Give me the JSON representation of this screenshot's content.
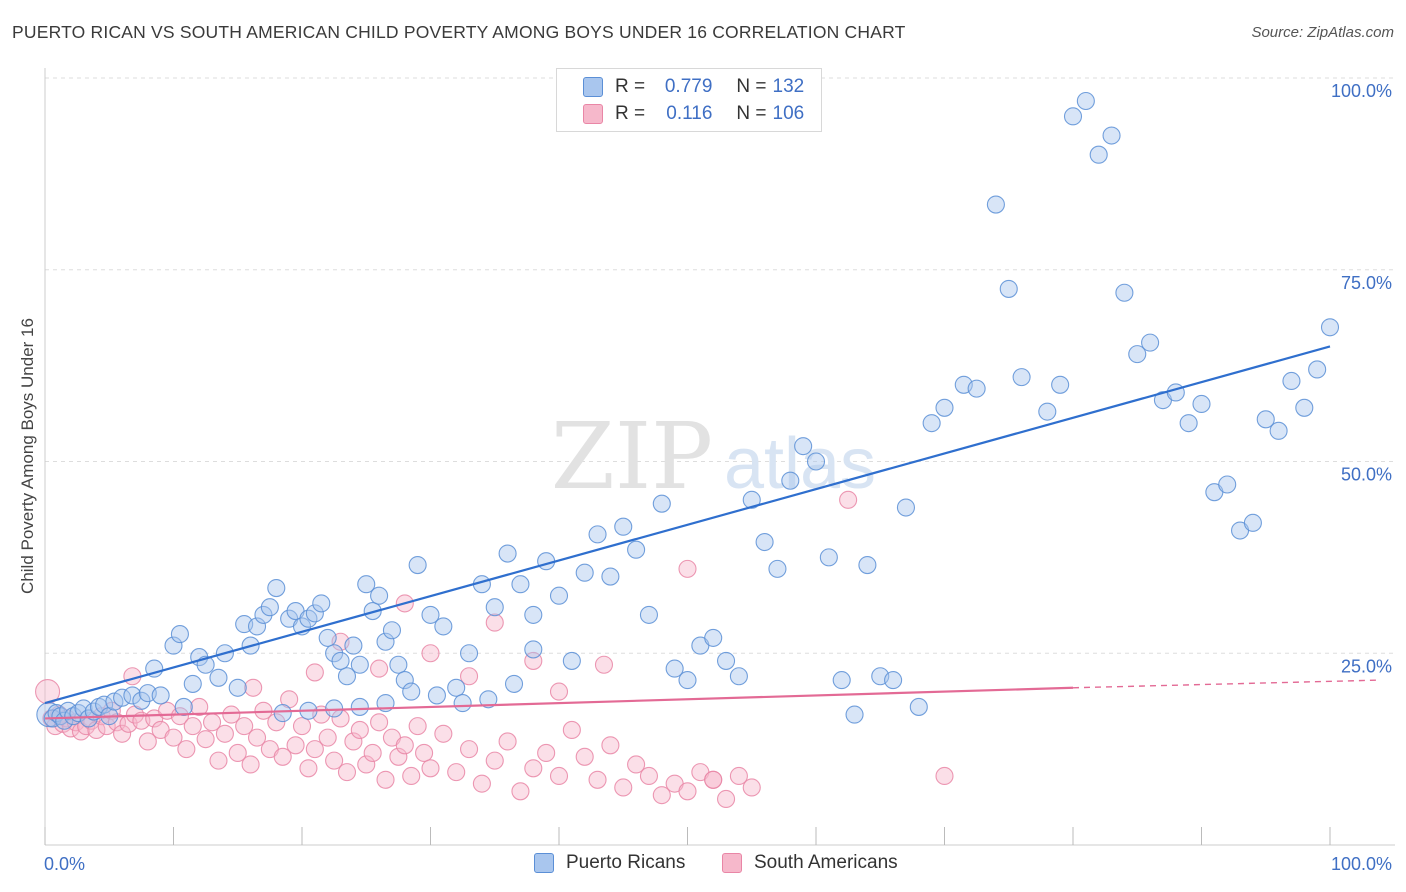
{
  "title": "PUERTO RICAN VS SOUTH AMERICAN CHILD POVERTY AMONG BOYS UNDER 16 CORRELATION CHART",
  "source": "Source: ZipAtlas.com",
  "watermark": {
    "zip": "ZIP",
    "atlas": "atlas"
  },
  "legend": {
    "r_label": "R =",
    "n_label": "N =",
    "rows": [
      {
        "series": "Puerto Ricans",
        "r": "0.779",
        "n": "132"
      },
      {
        "series": "South Americans",
        "r": "0.116",
        "n": "106"
      }
    ]
  },
  "colors": {
    "blue_fill": "#a9c6ee",
    "blue_stroke": "#5b8fd6",
    "blue_line": "#2f6fce",
    "pink_fill": "#f6b8cb",
    "pink_stroke": "#e986a6",
    "pink_line": "#e36a95",
    "axis_text": "#3f6fc4",
    "grid": "#dddddd"
  },
  "chart_data": {
    "type": "scatter",
    "title": "PUERTO RICAN VS SOUTH AMERICAN CHILD POVERTY AMONG BOYS UNDER 16 CORRELATION CHART",
    "xlabel": "",
    "ylabel": "Child Poverty Among Boys Under 16",
    "xlim": [
      0,
      100
    ],
    "ylim": [
      0,
      100
    ],
    "x_tick_labels": [
      "0.0%",
      "100.0%"
    ],
    "y_ticks": [
      25,
      50,
      75,
      100
    ],
    "y_tick_labels": [
      "25.0%",
      "50.0%",
      "75.0%",
      "100.0%"
    ],
    "grid": true,
    "series": [
      {
        "name": "Puerto Ricans",
        "r": 0.779,
        "n": 132,
        "trend": {
          "x0": 0,
          "y0": 18.5,
          "x1": 100,
          "y1": 65.0
        },
        "points": [
          [
            0.3,
            17.0,
            4
          ],
          [
            0.6,
            16.5,
            3
          ],
          [
            0.9,
            17.2,
            3
          ],
          [
            1.2,
            16.8,
            3
          ],
          [
            1.5,
            16.2,
            3
          ],
          [
            1.8,
            17.5,
            3
          ],
          [
            2.2,
            16.8,
            3
          ],
          [
            2.6,
            17.2,
            3
          ],
          [
            3.0,
            17.8,
            3
          ],
          [
            3.4,
            16.5,
            3
          ],
          [
            3.8,
            17.4,
            3
          ],
          [
            4.2,
            18.0,
            3
          ],
          [
            4.6,
            18.3,
            3
          ],
          [
            5.0,
            16.8,
            3
          ],
          [
            5.4,
            18.7,
            3
          ],
          [
            6.0,
            19.2,
            3
          ],
          [
            6.8,
            19.5,
            3
          ],
          [
            7.5,
            18.8,
            3
          ],
          [
            8.0,
            19.8,
            3
          ],
          [
            8.5,
            23.0,
            3
          ],
          [
            9.0,
            19.5,
            3
          ],
          [
            10.0,
            26.0,
            3
          ],
          [
            10.5,
            27.5,
            3
          ],
          [
            10.8,
            18.0,
            3
          ],
          [
            11.5,
            21.0,
            3
          ],
          [
            12.0,
            24.5,
            3
          ],
          [
            12.5,
            23.5,
            3
          ],
          [
            13.5,
            21.8,
            3
          ],
          [
            14.0,
            25.0,
            3
          ],
          [
            15.0,
            20.5,
            3
          ],
          [
            15.5,
            28.8,
            3
          ],
          [
            16.0,
            26.0,
            3
          ],
          [
            16.5,
            28.5,
            3
          ],
          [
            17.0,
            30.0,
            3
          ],
          [
            17.5,
            31.0,
            3
          ],
          [
            18.0,
            33.5,
            3
          ],
          [
            19.0,
            29.5,
            3
          ],
          [
            19.5,
            30.5,
            3
          ],
          [
            20.0,
            28.5,
            3
          ],
          [
            20.5,
            29.5,
            3
          ],
          [
            21.0,
            30.2,
            3
          ],
          [
            21.5,
            31.5,
            3
          ],
          [
            22.0,
            27.0,
            3
          ],
          [
            22.5,
            25.0,
            3
          ],
          [
            23.0,
            24.0,
            3
          ],
          [
            23.5,
            22.0,
            3
          ],
          [
            24.0,
            26.0,
            3
          ],
          [
            24.5,
            23.5,
            3
          ],
          [
            25.0,
            34.0,
            3
          ],
          [
            25.5,
            30.5,
            3
          ],
          [
            26.0,
            32.5,
            3
          ],
          [
            26.5,
            26.5,
            3
          ],
          [
            27.0,
            28.0,
            3
          ],
          [
            27.5,
            23.5,
            3
          ],
          [
            28.0,
            21.5,
            3
          ],
          [
            29.0,
            36.5,
            3
          ],
          [
            30.0,
            30.0,
            3
          ],
          [
            31.0,
            28.5,
            3
          ],
          [
            32.0,
            20.5,
            3
          ],
          [
            33.0,
            25.0,
            3
          ],
          [
            34.0,
            34.0,
            3
          ],
          [
            35.0,
            31.0,
            3
          ],
          [
            36.0,
            38.0,
            3
          ],
          [
            37.0,
            34.0,
            3
          ],
          [
            38.0,
            30.0,
            3
          ],
          [
            39.0,
            37.0,
            3
          ],
          [
            40.0,
            32.5,
            3
          ],
          [
            41.0,
            24.0,
            3
          ],
          [
            42.0,
            35.5,
            3
          ],
          [
            43.0,
            40.5,
            3
          ],
          [
            44.0,
            35.0,
            3
          ],
          [
            45.0,
            41.5,
            3
          ],
          [
            46.0,
            38.5,
            3
          ],
          [
            47.0,
            30.0,
            3
          ],
          [
            48.0,
            44.5,
            3
          ],
          [
            49.0,
            23.0,
            3
          ],
          [
            50.0,
            21.5,
            3
          ],
          [
            51.0,
            26.0,
            3
          ],
          [
            52.0,
            27.0,
            3
          ],
          [
            53.0,
            24.0,
            3
          ],
          [
            54.0,
            22.0,
            3
          ],
          [
            55.0,
            45.0,
            3
          ],
          [
            56.0,
            39.5,
            3
          ],
          [
            57.0,
            36.0,
            3
          ],
          [
            58.0,
            47.5,
            3
          ],
          [
            59.0,
            52.0,
            3
          ],
          [
            60.0,
            50.0,
            3
          ],
          [
            61.0,
            37.5,
            3
          ],
          [
            62.0,
            21.5,
            3
          ],
          [
            63.0,
            17.0,
            3
          ],
          [
            64.0,
            36.5,
            3
          ],
          [
            65.0,
            22.0,
            3
          ],
          [
            66.0,
            21.5,
            3
          ],
          [
            67.0,
            44.0,
            3
          ],
          [
            68.0,
            18.0,
            3
          ],
          [
            69.0,
            55.0,
            3
          ],
          [
            70.0,
            57.0,
            3
          ],
          [
            71.5,
            60.0,
            3
          ],
          [
            72.5,
            59.5,
            3
          ],
          [
            74.0,
            83.5,
            3
          ],
          [
            75.0,
            72.5,
            3
          ],
          [
            76.0,
            61.0,
            3
          ],
          [
            78.0,
            56.5,
            3
          ],
          [
            79.0,
            60.0,
            3
          ],
          [
            80.0,
            95.0,
            3
          ],
          [
            81.0,
            97.0,
            3
          ],
          [
            82.0,
            90.0,
            3
          ],
          [
            83.0,
            92.5,
            3
          ],
          [
            84.0,
            72.0,
            3
          ],
          [
            85.0,
            64.0,
            3
          ],
          [
            86.0,
            65.5,
            3
          ],
          [
            87.0,
            58.0,
            3
          ],
          [
            88.0,
            59.0,
            3
          ],
          [
            89.0,
            55.0,
            3
          ],
          [
            90.0,
            57.5,
            3
          ],
          [
            91.0,
            46.0,
            3
          ],
          [
            92.0,
            47.0,
            3
          ],
          [
            93.0,
            41.0,
            3
          ],
          [
            94.0,
            42.0,
            3
          ],
          [
            95.0,
            55.5,
            3
          ],
          [
            96.0,
            54.0,
            3
          ],
          [
            97.0,
            60.5,
            3
          ],
          [
            98.0,
            57.0,
            3
          ],
          [
            99.0,
            62.0,
            3
          ],
          [
            100.0,
            67.5,
            3
          ],
          [
            38.0,
            25.5,
            3
          ],
          [
            36.5,
            21.0,
            3
          ],
          [
            34.5,
            19.0,
            3
          ],
          [
            32.5,
            18.5,
            3
          ],
          [
            30.5,
            19.5,
            3
          ],
          [
            28.5,
            20.0,
            3
          ],
          [
            26.5,
            18.5,
            3
          ],
          [
            24.5,
            18.0,
            3
          ],
          [
            22.5,
            17.8,
            3
          ],
          [
            20.5,
            17.5,
            3
          ],
          [
            18.5,
            17.2,
            3
          ]
        ]
      },
      {
        "name": "South Americans",
        "r": 0.116,
        "n": 106,
        "trend": {
          "x0": 0,
          "y0": 16.5,
          "x1": 80,
          "y1": 20.5,
          "dash_x1": 100,
          "dash_y1": 21.5
        },
        "points": [
          [
            0.2,
            20.0,
            4
          ],
          [
            0.5,
            16.5,
            3
          ],
          [
            0.8,
            15.5,
            3
          ],
          [
            1.1,
            17.0,
            3
          ],
          [
            1.4,
            15.8,
            3
          ],
          [
            1.7,
            16.5,
            3
          ],
          [
            2.0,
            15.2,
            3
          ],
          [
            2.4,
            16.0,
            3
          ],
          [
            2.8,
            14.8,
            3
          ],
          [
            3.2,
            15.5,
            3
          ],
          [
            3.6,
            16.2,
            3
          ],
          [
            4.0,
            15.0,
            3
          ],
          [
            4.4,
            16.8,
            3
          ],
          [
            4.8,
            15.5,
            3
          ],
          [
            5.2,
            17.5,
            3
          ],
          [
            5.6,
            16.0,
            3
          ],
          [
            6.0,
            14.5,
            3
          ],
          [
            6.5,
            15.8,
            3
          ],
          [
            7.0,
            17.0,
            3
          ],
          [
            7.5,
            16.2,
            3
          ],
          [
            8.0,
            13.5,
            3
          ],
          [
            8.5,
            16.5,
            3
          ],
          [
            9.0,
            15.0,
            3
          ],
          [
            9.5,
            17.5,
            3
          ],
          [
            10.0,
            14.0,
            3
          ],
          [
            10.5,
            16.8,
            3
          ],
          [
            11.0,
            12.5,
            3
          ],
          [
            11.5,
            15.5,
            3
          ],
          [
            12.0,
            18.0,
            3
          ],
          [
            12.5,
            13.8,
            3
          ],
          [
            13.0,
            16.0,
            3
          ],
          [
            13.5,
            11.0,
            3
          ],
          [
            14.0,
            14.5,
            3
          ],
          [
            14.5,
            17.0,
            3
          ],
          [
            15.0,
            12.0,
            3
          ],
          [
            15.5,
            15.5,
            3
          ],
          [
            16.0,
            10.5,
            3
          ],
          [
            16.5,
            14.0,
            3
          ],
          [
            17.0,
            17.5,
            3
          ],
          [
            17.5,
            12.5,
            3
          ],
          [
            18.0,
            16.0,
            3
          ],
          [
            18.5,
            11.5,
            3
          ],
          [
            19.0,
            19.0,
            3
          ],
          [
            19.5,
            13.0,
            3
          ],
          [
            20.0,
            15.5,
            3
          ],
          [
            20.5,
            10.0,
            3
          ],
          [
            21.0,
            12.5,
            3
          ],
          [
            21.5,
            17.0,
            3
          ],
          [
            22.0,
            14.0,
            3
          ],
          [
            22.5,
            11.0,
            3
          ],
          [
            23.0,
            16.5,
            3
          ],
          [
            23.5,
            9.5,
            3
          ],
          [
            24.0,
            13.5,
            3
          ],
          [
            24.5,
            15.0,
            3
          ],
          [
            25.0,
            10.5,
            3
          ],
          [
            25.5,
            12.0,
            3
          ],
          [
            26.0,
            16.0,
            3
          ],
          [
            26.5,
            8.5,
            3
          ],
          [
            27.0,
            14.0,
            3
          ],
          [
            27.5,
            11.5,
            3
          ],
          [
            28.0,
            13.0,
            3
          ],
          [
            28.5,
            9.0,
            3
          ],
          [
            29.0,
            15.5,
            3
          ],
          [
            29.5,
            12.0,
            3
          ],
          [
            30.0,
            10.0,
            3
          ],
          [
            31.0,
            14.5,
            3
          ],
          [
            32.0,
            9.5,
            3
          ],
          [
            33.0,
            12.5,
            3
          ],
          [
            34.0,
            8.0,
            3
          ],
          [
            35.0,
            11.0,
            3
          ],
          [
            36.0,
            13.5,
            3
          ],
          [
            37.0,
            7.0,
            3
          ],
          [
            38.0,
            10.0,
            3
          ],
          [
            39.0,
            12.0,
            3
          ],
          [
            40.0,
            9.0,
            3
          ],
          [
            41.0,
            15.0,
            3
          ],
          [
            42.0,
            11.5,
            3
          ],
          [
            43.0,
            8.5,
            3
          ],
          [
            44.0,
            13.0,
            3
          ],
          [
            45.0,
            7.5,
            3
          ],
          [
            46.0,
            10.5,
            3
          ],
          [
            47.0,
            9.0,
            3
          ],
          [
            48.0,
            6.5,
            3
          ],
          [
            49.0,
            8.0,
            3
          ],
          [
            50.0,
            7.0,
            3
          ],
          [
            51.0,
            9.5,
            3
          ],
          [
            52.0,
            8.5,
            3
          ],
          [
            53.0,
            6.0,
            3
          ],
          [
            54.0,
            9.0,
            3
          ],
          [
            55.0,
            7.5,
            3
          ],
          [
            6.8,
            22.0,
            3
          ],
          [
            16.2,
            20.5,
            3
          ],
          [
            21.0,
            22.5,
            3
          ],
          [
            23.0,
            26.5,
            3
          ],
          [
            26.0,
            23.0,
            3
          ],
          [
            28.0,
            31.5,
            3
          ],
          [
            30.0,
            25.0,
            3
          ],
          [
            33.0,
            22.0,
            3
          ],
          [
            35.0,
            29.0,
            3
          ],
          [
            38.0,
            24.0,
            3
          ],
          [
            40.0,
            20.0,
            3
          ],
          [
            43.5,
            23.5,
            3
          ],
          [
            50.0,
            36.0,
            3
          ],
          [
            52.0,
            8.5,
            3
          ],
          [
            62.5,
            45.0,
            3
          ],
          [
            70.0,
            9.0,
            3
          ]
        ]
      }
    ]
  }
}
